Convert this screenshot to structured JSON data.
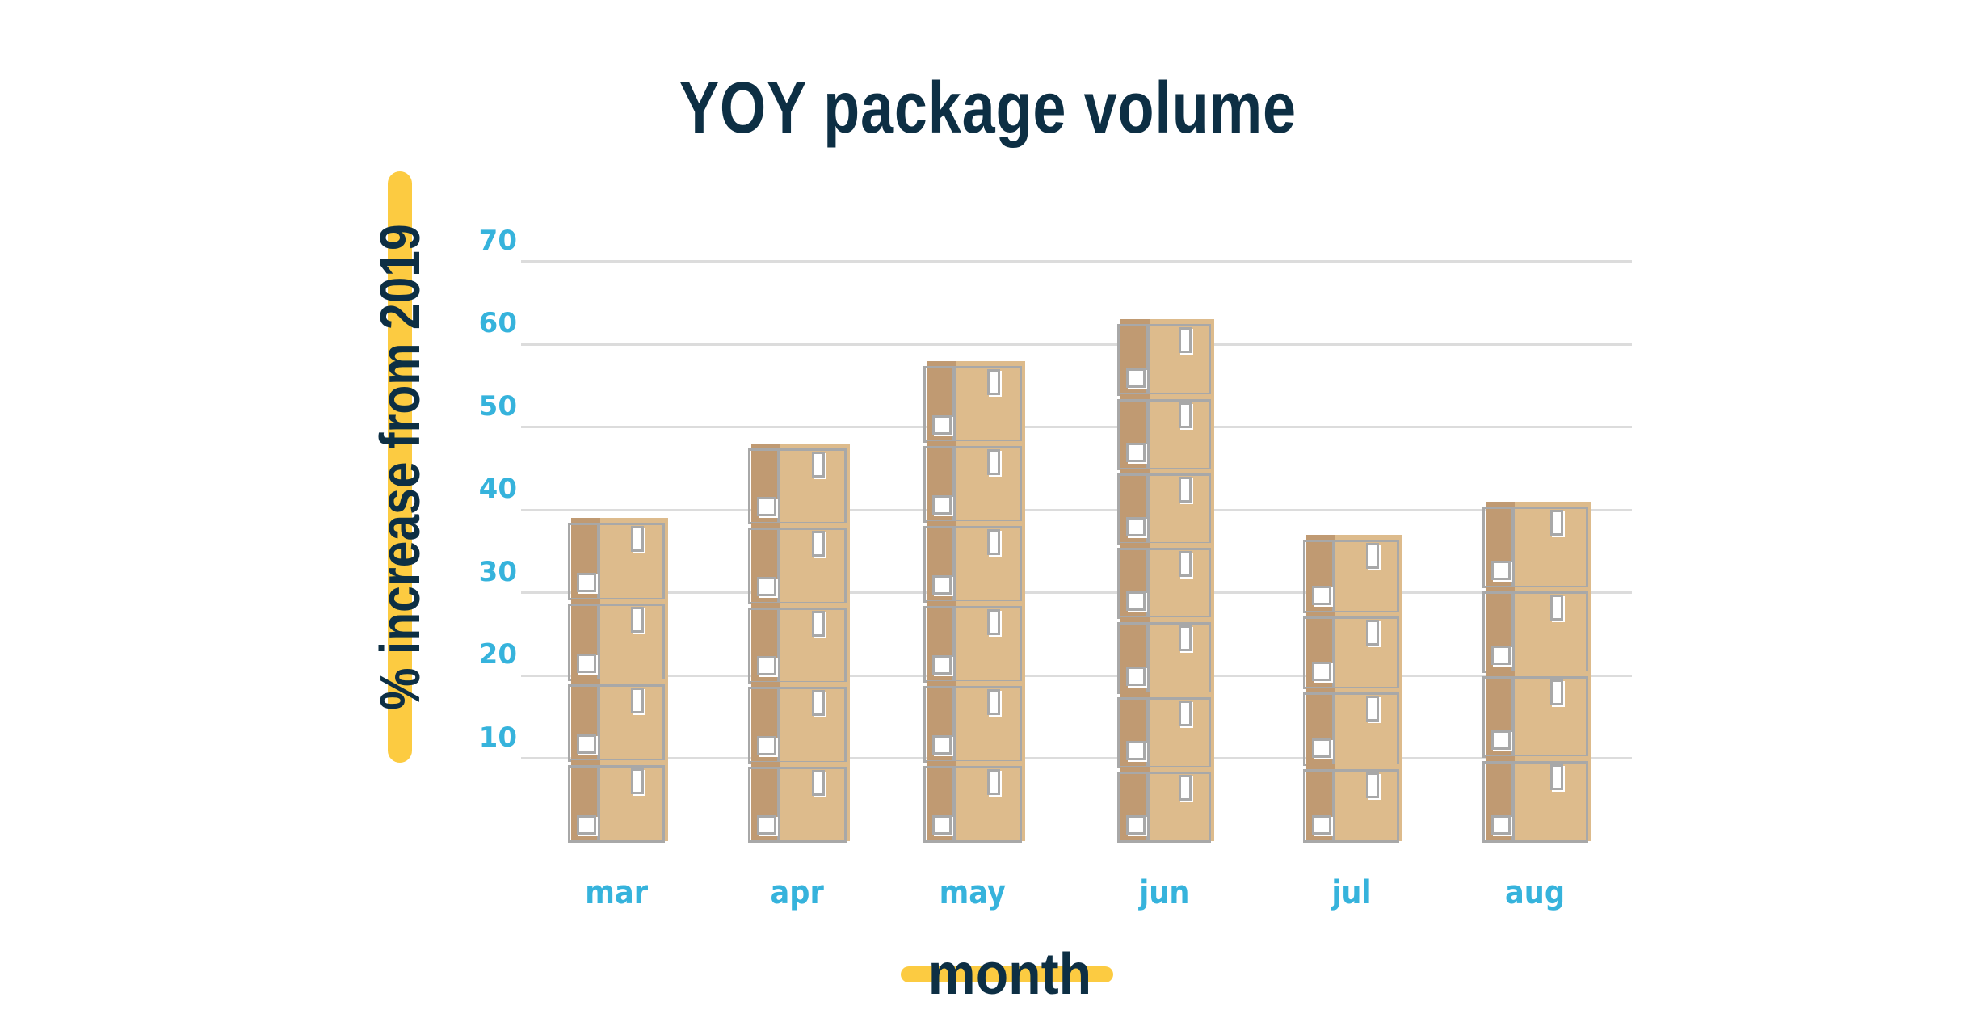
{
  "chart_data": {
    "type": "bar",
    "title": "YOY package volume",
    "xlabel": "month",
    "ylabel": "% increase from 2019",
    "categories": [
      "mar",
      "apr",
      "may",
      "jun",
      "jul",
      "aug"
    ],
    "values": [
      39,
      48,
      58,
      63,
      37,
      41
    ],
    "ylim": [
      0,
      70
    ],
    "yticks": [
      "10",
      "20",
      "30",
      "40",
      "50",
      "60",
      "70"
    ],
    "grid": true,
    "legend": null,
    "bar_style": "stacked cardboard box pictograms",
    "box_counts": [
      4,
      5,
      6,
      7,
      4,
      4
    ]
  },
  "colors": {
    "title": "#0d2f44",
    "tick_labels": "#36b3dc",
    "highlight": "#fccb41",
    "box_front": "#ddbb8c",
    "box_side": "#c09a72",
    "box_outline": "#a8a8a8",
    "gridline": "#dcdcdc"
  }
}
